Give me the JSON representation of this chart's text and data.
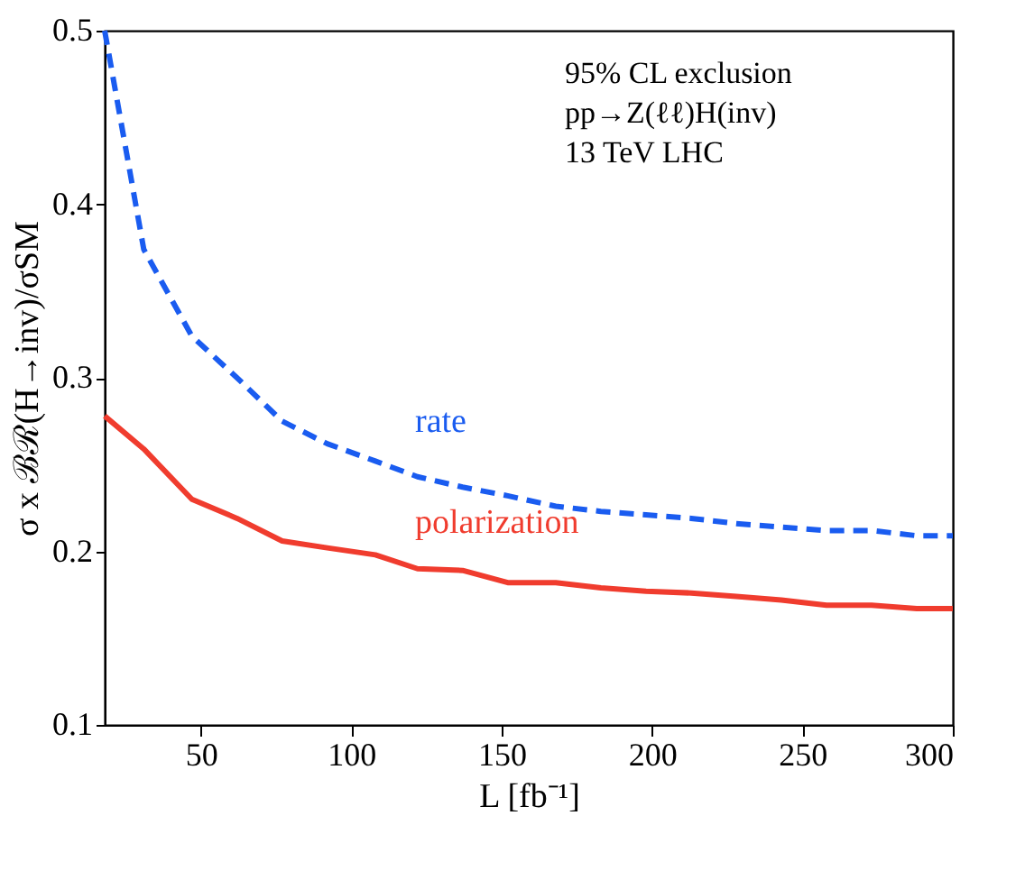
{
  "chart_data": {
    "type": "line",
    "xlabel": "L [fb⁻¹]",
    "ylabel": "σ x ℬℛ(H→inv)/σSM",
    "xlim": [
      18,
      300
    ],
    "xticks": [
      50,
      100,
      150,
      200,
      250,
      300
    ],
    "ylim": [
      0.1,
      0.5
    ],
    "yticks": [
      0.1,
      0.2,
      0.3,
      0.4,
      0.5
    ],
    "grid": false,
    "marker": "none",
    "annotations": [
      "95% CL exclusion",
      "pp→Z(ℓℓ)H(inv)",
      "13 TeV LHC"
    ],
    "series": [
      {
        "name": "rate",
        "color": "#1a5cf0",
        "line_style": "dashed",
        "x": [
          18,
          31,
          47,
          62,
          77,
          92,
          108,
          122,
          137,
          152,
          168,
          183,
          198,
          213,
          228,
          243,
          258,
          273,
          288,
          300
        ],
        "values": [
          0.5,
          0.374,
          0.324,
          0.3,
          0.275,
          0.262,
          0.252,
          0.243,
          0.237,
          0.232,
          0.226,
          0.223,
          0.221,
          0.219,
          0.216,
          0.214,
          0.212,
          0.212,
          0.209,
          0.209
        ]
      },
      {
        "name": "polarization",
        "color": "#f03c2e",
        "line_style": "solid",
        "x": [
          18,
          31,
          47,
          62,
          77,
          92,
          108,
          122,
          137,
          152,
          168,
          183,
          198,
          213,
          228,
          243,
          258,
          273,
          288,
          300
        ],
        "values": [
          0.278,
          0.259,
          0.23,
          0.219,
          0.206,
          0.202,
          0.198,
          0.19,
          0.189,
          0.182,
          0.182,
          0.179,
          0.177,
          0.176,
          0.174,
          0.172,
          0.169,
          0.169,
          0.167,
          0.167
        ]
      }
    ]
  }
}
